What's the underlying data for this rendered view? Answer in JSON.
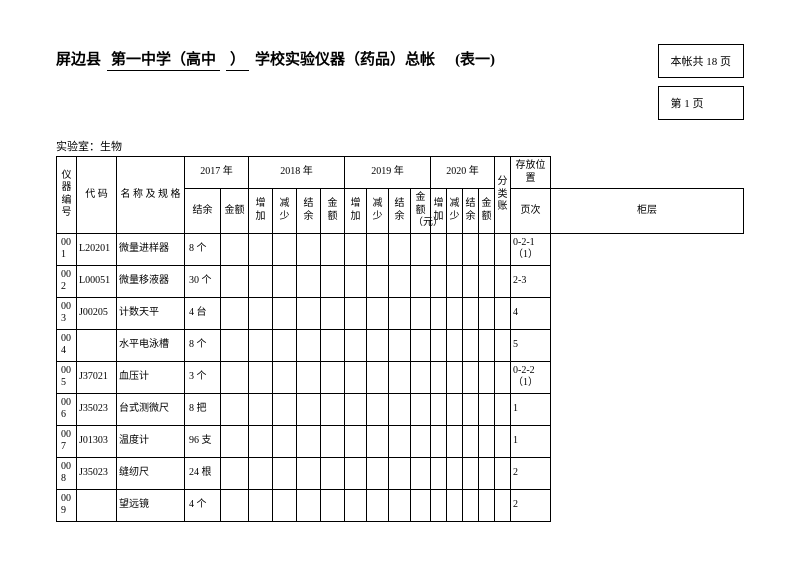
{
  "header": {
    "county": "屏边县",
    "school_blank1": "第一中学（高中",
    "school_blank2": "）",
    "title_rest": "学校实验仪器（药品）总帐",
    "table_no": "(表一)",
    "total_pages": "本帐共 18 页",
    "this_page": "第 1 页",
    "lab_label": "实验室：",
    "lab_name": "生物"
  },
  "columns": {
    "seq": "仪器编号",
    "code": "代 码",
    "name": "名 称 及 规 格",
    "y2017": "2017 年",
    "y2018": "2018 年",
    "y2019": "2019 年",
    "y2020": "2020 年",
    "category": "分类账",
    "location": "存放位置",
    "balance": "结余",
    "amount": "金额",
    "add": "增加",
    "sub": "减少",
    "amount_yuan": "金额（元）",
    "page_no": "页次",
    "cabinet": "柜层"
  },
  "rows": [
    {
      "seq": "001",
      "code": "L20201",
      "name": "微量进样器",
      "bal": "8 个",
      "loc": "0-2-1（1）"
    },
    {
      "seq": "002",
      "code": "L00051",
      "name": "微量移液器",
      "bal": "30 个",
      "loc": "2-3"
    },
    {
      "seq": "003",
      "code": "J00205",
      "name": "计数天平",
      "bal": "4 台",
      "loc": "4"
    },
    {
      "seq": "004",
      "code": "",
      "name": "水平电泳槽",
      "bal": "8 个",
      "loc": "5"
    },
    {
      "seq": "005",
      "code": "J37021",
      "name": "血压计",
      "bal": "3 个",
      "loc": "0-2-2（1）"
    },
    {
      "seq": "006",
      "code": "J35023",
      "name": "台式测微尺",
      "bal": "8 把",
      "loc": "1"
    },
    {
      "seq": "007",
      "code": "J01303",
      "name": "温度计",
      "bal": "96 支",
      "loc": "1"
    },
    {
      "seq": "008",
      "code": "J35023",
      "name": "缝纫尺",
      "bal": "24 根",
      "loc": "2"
    },
    {
      "seq": "009",
      "code": "",
      "name": "望远镜",
      "bal": "4 个",
      "loc": "2"
    }
  ]
}
